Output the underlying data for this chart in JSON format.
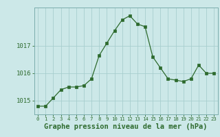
{
  "hours": [
    0,
    1,
    2,
    3,
    4,
    5,
    6,
    7,
    8,
    9,
    10,
    11,
    12,
    13,
    14,
    15,
    16,
    17,
    18,
    19,
    20,
    21,
    22,
    23
  ],
  "pressure": [
    1014.8,
    1014.8,
    1015.1,
    1015.4,
    1015.5,
    1015.5,
    1015.55,
    1015.8,
    1016.65,
    1017.1,
    1017.55,
    1017.95,
    1018.1,
    1017.8,
    1017.7,
    1016.6,
    1016.2,
    1015.8,
    1015.75,
    1015.7,
    1015.8,
    1016.3,
    1016.0,
    1016.0
  ],
  "line_color": "#2d6a2d",
  "marker": "s",
  "marker_size": 2.2,
  "bg_color": "#cce8e8",
  "grid_color": "#a8cece",
  "xlabel": "Graphe pression niveau de la mer (hPa)",
  "xlabel_fontsize": 7.5,
  "ylim": [
    1014.5,
    1018.4
  ],
  "yticks": [
    1015,
    1016,
    1017
  ],
  "xlim": [
    -0.5,
    23.5
  ],
  "xtick_labels": [
    "0",
    "1",
    "2",
    "3",
    "4",
    "5",
    "6",
    "7",
    "8",
    "9",
    "10",
    "11",
    "12",
    "13",
    "14",
    "15",
    "16",
    "17",
    "18",
    "19",
    "20",
    "21",
    "22",
    "23"
  ]
}
